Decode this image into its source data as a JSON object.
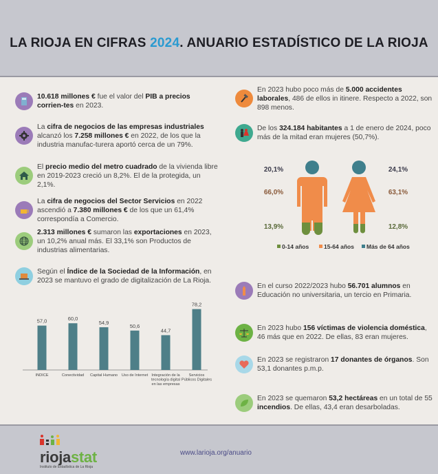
{
  "header": {
    "title_pre": "LA RIOJA EN CIFRAS ",
    "title_year": "2024",
    "title_post": ". ANUARIO ESTADÍSTICO DE LA RIOJA"
  },
  "left_items": [
    {
      "icon": "calculator-icon",
      "color": "#9b7bb8",
      "parts": [
        [
          "b",
          "10.618 millones €"
        ],
        [
          "t",
          " fue el valor del "
        ],
        [
          "b",
          "PIB a precios corrien-tes"
        ],
        [
          "t",
          " en 2023."
        ]
      ]
    },
    {
      "icon": "gear-icon",
      "color": "#9b7bb8",
      "parts": [
        [
          "t",
          "La "
        ],
        [
          "b",
          "cifra de negocios de las empresas industriales"
        ],
        [
          "t",
          " alcanzó los "
        ],
        [
          "b",
          "7.258 millones €"
        ],
        [
          "t",
          " en 2022, de los que la industria manufac-turera aportó cerca de un 79%."
        ]
      ]
    },
    {
      "icon": "house-icon",
      "color": "#9ccc7c",
      "parts": [
        [
          "t",
          "El "
        ],
        [
          "b",
          "precio medio del metro cuadrado"
        ],
        [
          "t",
          " de la vivienda libre en 2019-2023 creció un 8,2%. El de la protegida, un 2,1%."
        ]
      ]
    },
    {
      "icon": "coffee-cup-icon",
      "color": "#9b7bb8",
      "parts": [
        [
          "t",
          "La "
        ],
        [
          "b",
          "cifra de negocios del Sector Servicios"
        ],
        [
          "t",
          " en 2022 ascendió a "
        ],
        [
          "b",
          "7.380 millones €"
        ],
        [
          "t",
          " de los que un 61,4% correspondía a Comercio."
        ]
      ]
    },
    {
      "icon": "globe-icon",
      "color": "#9ccc7c",
      "parts": [
        [
          "b",
          "2.313 millones €"
        ],
        [
          "t",
          " sumaron las "
        ],
        [
          "b",
          "exportaciones"
        ],
        [
          "t",
          " en 2023, un 10,2% anual más. El 33,1% son Productos de industrias alimentarias."
        ]
      ]
    },
    {
      "icon": "laptop-icon",
      "color": "#8fcfe0",
      "parts": [
        [
          "t",
          "Según el "
        ],
        [
          "b",
          "Índice de la Sociedad de la Información"
        ],
        [
          "t",
          ", en 2023 se mantuvo el grado de digitalización de La Rioja."
        ]
      ]
    }
  ],
  "right_items": [
    {
      "icon": "hammer-icon",
      "color": "#ee8a3c",
      "parts": [
        [
          "t",
          "En 2023 hubo poco más de "
        ],
        [
          "b",
          "5.000 accidentes laborales"
        ],
        [
          "t",
          ", 486 de ellos in itinere. Respecto a 2022, son 898 menos."
        ]
      ]
    },
    {
      "icon": "man-woman-icon",
      "color": "#3fa98f",
      "parts": [
        [
          "t",
          "De los "
        ],
        [
          "b",
          "324.184 habitantes"
        ],
        [
          "t",
          " a 1 de enero de 2024, poco más de la mitad eran mujeres (50,7%)."
        ]
      ]
    },
    {
      "icon": "pencil-icon",
      "color": "#9b7bb8",
      "parts": [
        [
          "t",
          "En el curso 2022/2023 hubo "
        ],
        [
          "b",
          "56.701 alumnos"
        ],
        [
          "t",
          " en Educación no universitaria, un tercio en Primaria."
        ]
      ]
    },
    {
      "icon": "scales-icon",
      "color": "#6db244",
      "parts": [
        [
          "t",
          "En 2023 hubo "
        ],
        [
          "b",
          "156 víctimas de violencia doméstica"
        ],
        [
          "t",
          ", 46 más que en 2022. De ellas, 83 eran mujeres."
        ]
      ]
    },
    {
      "icon": "heart-icon",
      "color": "#a8d8e8",
      "parts": [
        [
          "t",
          "En 2023 se registraron "
        ],
        [
          "b",
          "17 donantes de órganos"
        ],
        [
          "t",
          ". Son 53,1 donantes p.m.p."
        ]
      ]
    },
    {
      "icon": "leaf-icon",
      "color": "#9ccc7c",
      "parts": [
        [
          "t",
          "En 2023 se quemaron "
        ],
        [
          "b",
          "53,2 hectáreas"
        ],
        [
          "t",
          " en un total de 55 "
        ],
        [
          "b",
          "incendios"
        ],
        [
          "t",
          ". De ellas, 43,4 eran desarboladas."
        ]
      ]
    }
  ],
  "population": {
    "men": {
      "over64": "20,1%",
      "age15_64": "66,0%",
      "age0_14": "13,9%"
    },
    "women": {
      "over64": "24,1%",
      "age15_64": "63,1%",
      "age0_14": "12,8%"
    },
    "legend": [
      "0-14 años",
      "15-64 años",
      "Más de 64 años"
    ],
    "colors": {
      "age0_14": "#6e8f3e",
      "age15_64": "#f08c4a",
      "over64": "#3f7f8c"
    }
  },
  "chart_data": {
    "type": "bar",
    "categories": [
      [
        "INDICE"
      ],
      [
        "Conectividad"
      ],
      [
        "Capital Humano"
      ],
      [
        "Uso de Internet"
      ],
      [
        "Integración de la",
        "tecnología digital",
        "en las empresas"
      ],
      [
        "Servicios",
        "Públicos Digitales"
      ]
    ],
    "values": [
      57.0,
      60.0,
      54.9,
      50.6,
      44.7,
      78.2
    ],
    "labels": [
      "57,0",
      "60,0",
      "54,9",
      "50,6",
      "44,7",
      "78,2"
    ],
    "color": "#4e7f88",
    "grid": false
  },
  "footer": {
    "logo_text_a": "rioja",
    "logo_text_b": "stat",
    "logo_sub": "Instituto de Estadística de La Rioja",
    "url": "www.larioja.org/anuario"
  }
}
